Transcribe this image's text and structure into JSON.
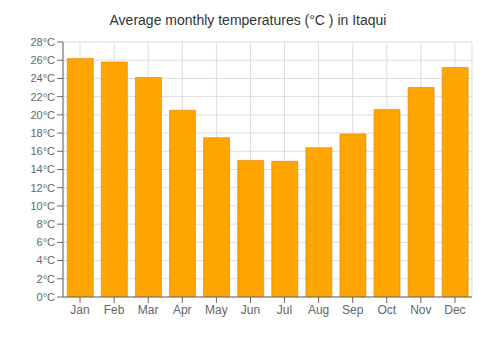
{
  "chart_data": {
    "type": "bar",
    "title": "Average monthly temperatures (°C ) in Itaqui",
    "categories": [
      "Jan",
      "Feb",
      "Mar",
      "Apr",
      "May",
      "Jun",
      "Jul",
      "Aug",
      "Sep",
      "Oct",
      "Nov",
      "Dec"
    ],
    "values": [
      26.2,
      25.8,
      24.1,
      20.5,
      17.5,
      15.0,
      14.9,
      16.4,
      17.9,
      20.6,
      23.0,
      25.2
    ],
    "color": "#FFA500",
    "ylim": [
      0,
      28
    ],
    "yticks": [
      {
        "value": 0,
        "label": "0°C"
      },
      {
        "value": 2,
        "label": "2°C"
      },
      {
        "value": 4,
        "label": "4°C"
      },
      {
        "value": 6,
        "label": "6°C"
      },
      {
        "value": 8,
        "label": "8°C"
      },
      {
        "value": 10,
        "label": "10°C"
      },
      {
        "value": 12,
        "label": "12°C"
      },
      {
        "value": 14,
        "label": "14°C"
      },
      {
        "value": 16,
        "label": "16°C"
      },
      {
        "value": 18,
        "label": "18°C"
      },
      {
        "value": 20,
        "label": "20°C"
      },
      {
        "value": 22,
        "label": "22°C"
      },
      {
        "value": 24,
        "label": "24°C"
      },
      {
        "value": 26,
        "label": "26°C"
      },
      {
        "value": 28,
        "label": "28°C"
      }
    ],
    "grid": true
  }
}
